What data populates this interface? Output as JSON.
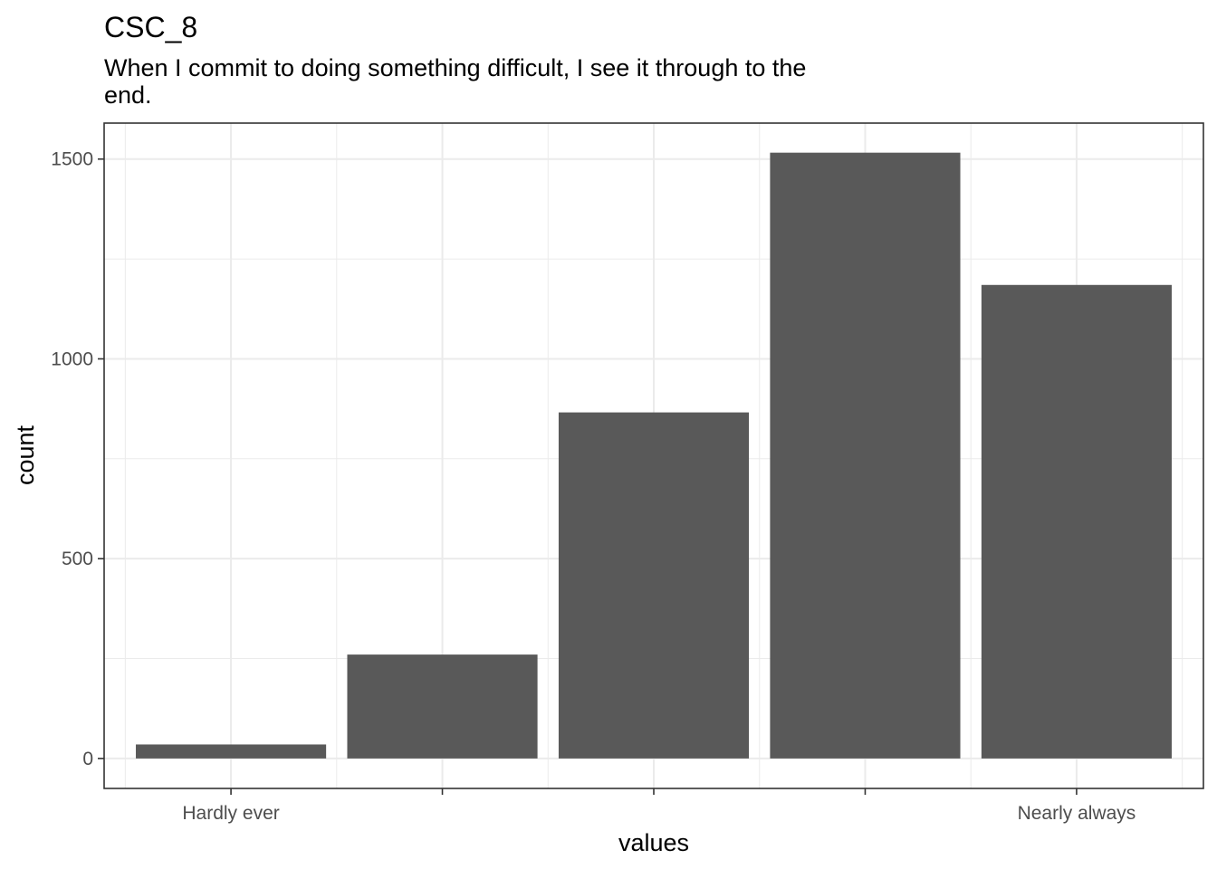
{
  "chart_data": {
    "type": "bar",
    "title": "CSC_8",
    "subtitle_lines": [
      "When I commit to doing something difficult, I see it through to the",
      "end."
    ],
    "xlabel": "values",
    "ylabel": "count",
    "categories": [
      "Hardly ever",
      "",
      "",
      "",
      "Nearly always"
    ],
    "values": [
      35,
      260,
      866,
      1516,
      1185
    ],
    "ylim": [
      -75,
      1590
    ],
    "yticks": [
      0,
      500,
      1000,
      1500
    ],
    "ytick_labels": [
      "0",
      "500",
      "1000",
      "1500"
    ],
    "grid": true,
    "legend": "none",
    "bar_color": "#595959",
    "grid_color": "#ebebeb",
    "panel_border_color": "#333333"
  }
}
